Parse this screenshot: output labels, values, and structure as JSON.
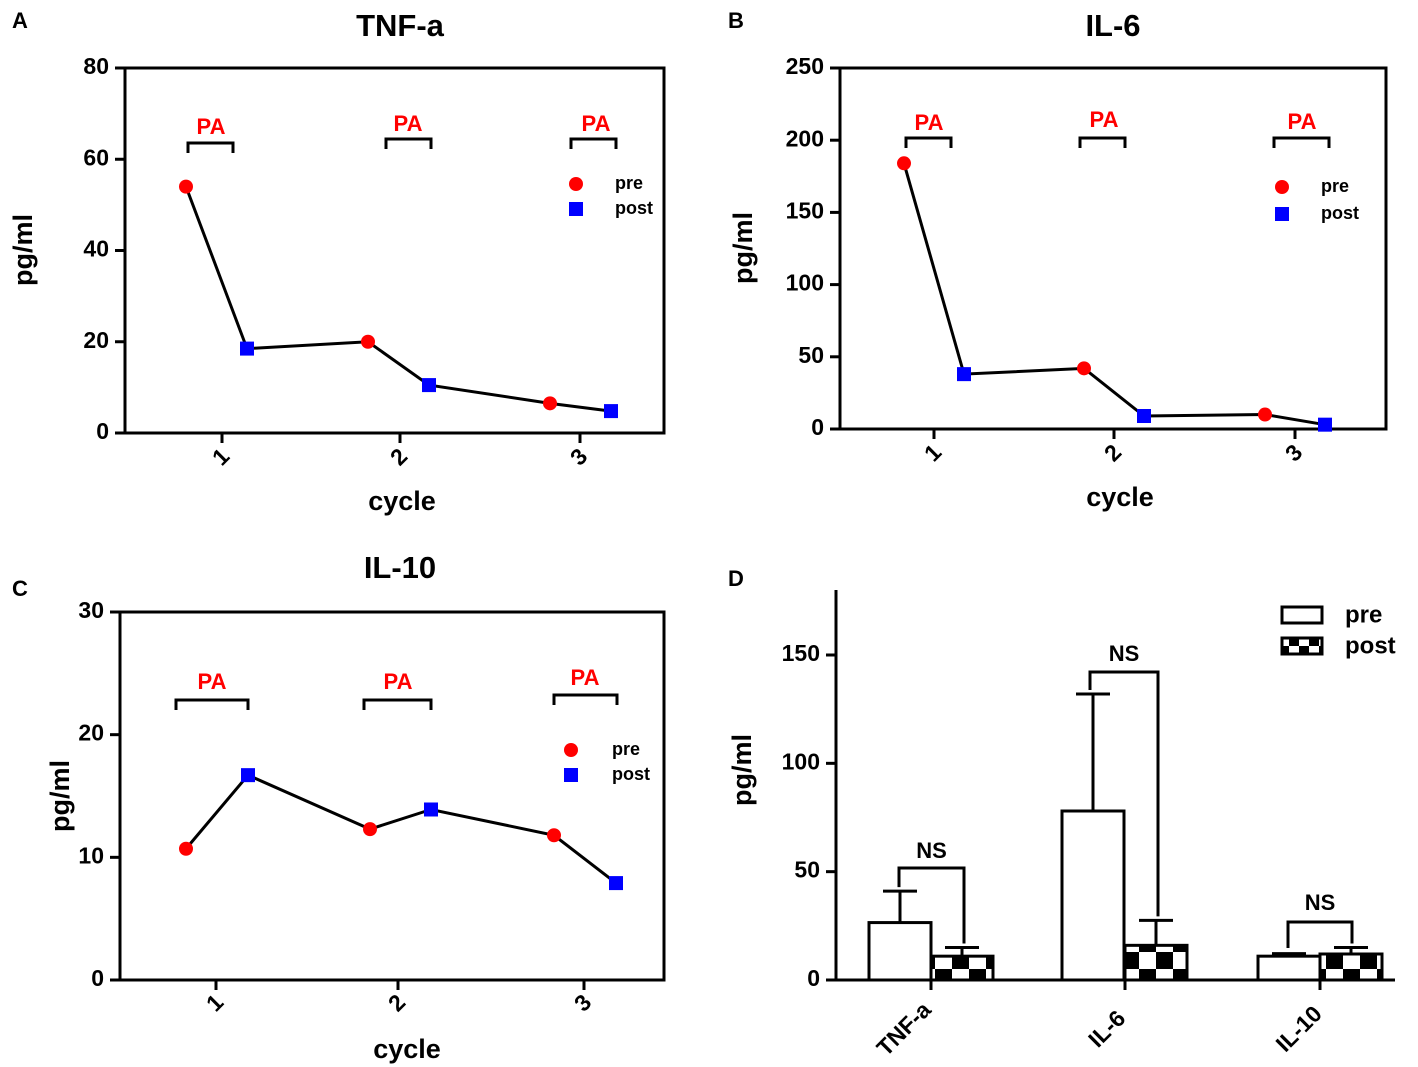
{
  "figure": {
    "colors": {
      "pre": "#ff0000",
      "post": "#0000ff",
      "line": "#000000",
      "annotation": "#ff0000",
      "axis": "#000000"
    }
  },
  "chart_data": [
    {
      "panel": "A",
      "type": "line",
      "title": "TNF-a",
      "xlabel": "cycle",
      "ylabel": "pg/ml",
      "ylim": [
        0,
        80
      ],
      "yticks": [
        0,
        20,
        40,
        60,
        80
      ],
      "x": [
        "1",
        "2",
        "3"
      ],
      "series": [
        {
          "name": "pre",
          "marker": "circle",
          "values": [
            54,
            20,
            6.5
          ]
        },
        {
          "name": "post",
          "marker": "square",
          "values": [
            18.5,
            10.5,
            4.8
          ]
        }
      ],
      "legend": [
        "pre",
        "post"
      ],
      "annotations": [
        "PA",
        "PA",
        "PA"
      ]
    },
    {
      "panel": "B",
      "type": "line",
      "title": "IL-6",
      "xlabel": "cycle",
      "ylabel": "pg/ml",
      "ylim": [
        0,
        250
      ],
      "yticks": [
        0,
        50,
        100,
        150,
        200,
        250
      ],
      "x": [
        "1",
        "2",
        "3"
      ],
      "series": [
        {
          "name": "pre",
          "marker": "circle",
          "values": [
            184,
            42,
            10
          ]
        },
        {
          "name": "post",
          "marker": "square",
          "values": [
            38,
            9,
            3
          ]
        }
      ],
      "legend": [
        "pre",
        "post"
      ],
      "annotations": [
        "PA",
        "PA",
        "PA"
      ]
    },
    {
      "panel": "C",
      "type": "line",
      "title": "IL-10",
      "xlabel": "cycle",
      "ylabel": "pg/ml",
      "ylim": [
        0,
        30
      ],
      "yticks": [
        0,
        10,
        20,
        30
      ],
      "x": [
        "1",
        "2",
        "3"
      ],
      "series": [
        {
          "name": "pre",
          "marker": "circle",
          "values": [
            10.7,
            12.3,
            11.8
          ]
        },
        {
          "name": "post",
          "marker": "square",
          "values": [
            16.7,
            13.9,
            7.9
          ]
        }
      ],
      "legend": [
        "pre",
        "post"
      ],
      "annotations": [
        "PA",
        "PA",
        "PA"
      ]
    },
    {
      "panel": "D",
      "type": "bar",
      "title": "",
      "xlabel": "",
      "ylabel": "pg/ml",
      "ylim": [
        0,
        180
      ],
      "yticks": [
        0,
        50,
        100,
        150
      ],
      "categories": [
        "TNF-a",
        "IL-6",
        "IL-10"
      ],
      "series": [
        {
          "name": "pre",
          "values": [
            26.5,
            78,
            11
          ],
          "errors": [
            14.5,
            54,
            1.2
          ]
        },
        {
          "name": "post",
          "values": [
            11,
            16,
            12
          ],
          "errors": [
            4,
            11.5,
            3
          ]
        }
      ],
      "legend": [
        "pre",
        "post"
      ],
      "significance": [
        "NS",
        "NS",
        "NS"
      ]
    }
  ]
}
